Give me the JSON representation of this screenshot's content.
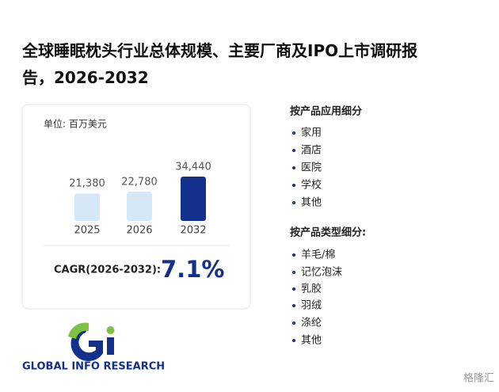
{
  "title": "全球睡眠枕头行业总体规模、主要厂商及IPO上市调研报告，2026-2032",
  "chart_data": {
    "type": "bar",
    "unit": "单位: 百万美元",
    "categories": [
      "2025",
      "2026",
      "2032"
    ],
    "values": [
      21380,
      22780,
      34440
    ],
    "value_labels": [
      "21,380",
      "22,780",
      "34,440"
    ],
    "colors": [
      "#d6e8f8",
      "#d6e8f8",
      "#13318c"
    ]
  },
  "cagr": {
    "label": "CAGR(2026-2032):",
    "value": "7.1%"
  },
  "by_application": {
    "title": "按产品应用细分",
    "items": [
      "家用",
      "酒店",
      "医院",
      "学校",
      "其他"
    ]
  },
  "by_type": {
    "title": "按产品类型细分:",
    "items": [
      "羊毛/棉",
      "记忆泡沫",
      "乳胶",
      "羽绒",
      "涤纶",
      "其他"
    ]
  },
  "logo": "GLOBAL INFO RESEARCH",
  "brand": "格隆汇"
}
